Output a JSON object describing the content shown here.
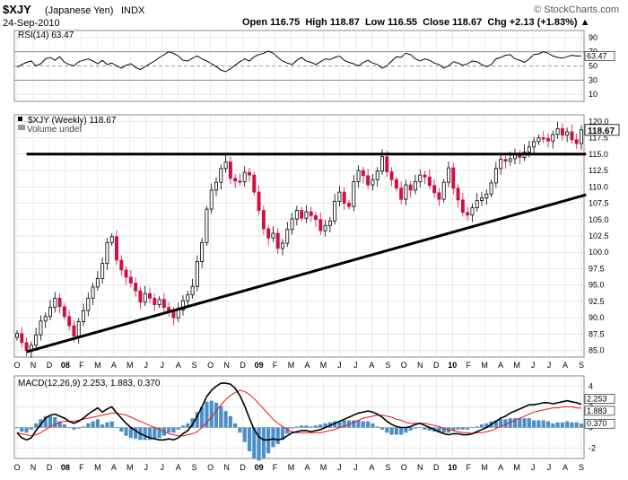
{
  "header": {
    "symbol": "$XJY",
    "name": "(Japanese Yen)",
    "exchange": "INDX",
    "date": "24-Sep-2010",
    "brand": "© StockCharts.com",
    "quote": "Open 116.75  High 118.87  Low 116.55  Close 118.67  Chg +2.13 (+1.83%) ▲"
  },
  "colors": {
    "up": "#000000",
    "down": "#cc1144",
    "macd_line": "#000000",
    "signal_line": "#ee1111",
    "histogram": "#4a90c8",
    "rsi_fill": "#5a9a3a",
    "grid": "#cfcfcf",
    "label_bg": "#9ec6ee"
  },
  "chart_data": [
    {
      "type": "line",
      "title": "RSI(14) 63.47",
      "label_value": "63.47",
      "ylim": [
        0,
        100
      ],
      "y_ticks": [
        "90",
        "70",
        "50",
        "30",
        "10"
      ],
      "reference_lines": [
        70,
        50,
        30
      ],
      "values": [
        48,
        52,
        55,
        57,
        50,
        53,
        60,
        62,
        58,
        63,
        55,
        52,
        50,
        56,
        58,
        60,
        57,
        53,
        58,
        52,
        54,
        50,
        47,
        51,
        53,
        48,
        45,
        49,
        53,
        57,
        62,
        66,
        70,
        68,
        64,
        58,
        57,
        61,
        64,
        60,
        57,
        53,
        49,
        44,
        42,
        46,
        51,
        56,
        60,
        57,
        63,
        66,
        68,
        71,
        68,
        62,
        57,
        54,
        52,
        58,
        62,
        57,
        55,
        52,
        56,
        60,
        59,
        62,
        64,
        58,
        55,
        53,
        50,
        55,
        58,
        54,
        52,
        47,
        50,
        57,
        63,
        62,
        68,
        66,
        60,
        57,
        60,
        58,
        54,
        52,
        47,
        50,
        56,
        54,
        51,
        53,
        57,
        56,
        52,
        49,
        52,
        60,
        62,
        65,
        66,
        60,
        58,
        55,
        60,
        66,
        67,
        70,
        68,
        64,
        62,
        61,
        63,
        65,
        64,
        64
      ]
    },
    {
      "type": "candlestick",
      "title": "$XJY (Weekly) 118.67",
      "volume_label": "Volume undef",
      "last_value": "118.67",
      "ylim": [
        84,
        121
      ],
      "y_ticks": [
        "120.0",
        "117.5",
        "115.0",
        "112.5",
        "110.0",
        "107.5",
        "105.0",
        "102.5",
        "100.0",
        "97.5",
        "95.0",
        "92.5",
        "90.0",
        "87.5",
        "85.0"
      ],
      "x_ticks": [
        "O",
        "N",
        "D",
        "08",
        "F",
        "M",
        "A",
        "M",
        "J",
        "J",
        "A",
        "S",
        "O",
        "N",
        "D",
        "09",
        "F",
        "M",
        "A",
        "M",
        "J",
        "J",
        "A",
        "S",
        "O",
        "N",
        "D",
        "10",
        "F",
        "M",
        "A",
        "M",
        "J",
        "J",
        "A",
        "S"
      ],
      "close": [
        87.6,
        86.2,
        85.0,
        85.8,
        87.4,
        89.5,
        90.2,
        91.6,
        93.0,
        91.7,
        90.2,
        88.8,
        87.2,
        89.4,
        91.1,
        93.0,
        94.7,
        96.0,
        98.3,
        101.5,
        102.4,
        98.8,
        97.3,
        96.2,
        95.3,
        94.1,
        92.4,
        93.7,
        93.0,
        92.0,
        92.8,
        91.6,
        91.1,
        90.0,
        91.2,
        92.6,
        93.5,
        94.8,
        98.6,
        101.5,
        106.6,
        109.5,
        110.7,
        112.8,
        113.8,
        111.3,
        110.9,
        110.8,
        112.2,
        111.8,
        109.2,
        106.4,
        103.6,
        102.2,
        102.9,
        100.6,
        101.4,
        103.5,
        105.1,
        106.4,
        105.2,
        106.2,
        105.6,
        105.0,
        103.3,
        104.1,
        104.8,
        107.8,
        109.2,
        107.5,
        107.0,
        110.8,
        112.5,
        111.7,
        110.3,
        111.1,
        112.4,
        114.6,
        112.3,
        111.1,
        109.8,
        108.1,
        110.3,
        109.5,
        110.8,
        111.8,
        111.5,
        110.2,
        109.1,
        108.1,
        110.7,
        112.9,
        109.8,
        108.0,
        106.1,
        105.7,
        106.8,
        107.9,
        108.3,
        108.9,
        110.6,
        112.8,
        114.2,
        113.9,
        114.3,
        115.0,
        114.5,
        115.3,
        116.1,
        116.9,
        117.5,
        117.4,
        117.0,
        118.0,
        118.9,
        117.9,
        118.4,
        117.2,
        116.6,
        118.7
      ],
      "trendlines": [
        {
          "name": "resistance",
          "points": [
            [
              2,
              115.0
            ],
            [
              120,
              115.0
            ]
          ]
        },
        {
          "name": "support",
          "points": [
            [
              2,
              84.8
            ],
            [
              120,
              108.8
            ]
          ]
        }
      ]
    },
    {
      "type": "line",
      "title": "MACD(12,26,9) 2.253, 1.883, 0.370",
      "macd_value": "2.253",
      "signal_value": "1.883",
      "hist_value": "0.370",
      "y_ticks": [
        "4",
        "2",
        "0",
        "-2"
      ],
      "macd": [
        -0.5,
        -1.0,
        -1.2,
        -1.0,
        -0.3,
        0.3,
        0.9,
        1.2,
        1.3,
        1.1,
        0.9,
        0.6,
        0.4,
        0.6,
        0.9,
        1.3,
        1.6,
        1.9,
        1.5,
        1.8,
        2.0,
        1.4,
        0.9,
        0.4,
        0.0,
        -0.3,
        -0.6,
        -0.8,
        -1.0,
        -1.1,
        -1.2,
        -1.2,
        -1.1,
        -1.2,
        -1.0,
        -0.6,
        -0.3,
        0.3,
        1.1,
        2.0,
        3.0,
        3.6,
        4.0,
        4.3,
        4.3,
        4.2,
        3.8,
        3.1,
        2.1,
        0.9,
        -0.2,
        -0.9,
        -1.2,
        -1.2,
        -1.1,
        -1.2,
        -1.1,
        -0.8,
        -0.5,
        -0.4,
        -0.3,
        -0.3,
        -0.4,
        -0.3,
        -0.2,
        0.0,
        0.2,
        0.4,
        0.6,
        0.8,
        1.0,
        1.2,
        1.4,
        1.5,
        1.6,
        1.5,
        1.3,
        1.0,
        0.6,
        0.3,
        0.1,
        0.0,
        0.0,
        0.1,
        0.3,
        0.4,
        0.2,
        0.0,
        -0.2,
        -0.4,
        -0.6,
        -0.7,
        -0.6,
        -0.6,
        -0.7,
        -0.7,
        -0.6,
        -0.4,
        -0.2,
        0.0,
        0.3,
        0.6,
        0.9,
        1.1,
        1.4,
        1.6,
        1.8,
        2.0,
        2.2,
        2.2,
        2.3,
        2.4,
        2.4,
        2.3,
        2.4,
        2.5,
        2.6,
        2.5,
        2.4,
        2.25
      ],
      "signal": [
        -0.5,
        -0.6,
        -0.7,
        -0.8,
        -0.7,
        -0.5,
        -0.2,
        0.1,
        0.3,
        0.5,
        0.6,
        0.6,
        0.6,
        0.7,
        0.8,
        0.9,
        1.0,
        1.1,
        1.2,
        1.3,
        1.4,
        1.4,
        1.3,
        1.2,
        1.0,
        0.8,
        0.6,
        0.4,
        0.2,
        0.0,
        -0.2,
        -0.4,
        -0.6,
        -0.7,
        -0.8,
        -0.8,
        -0.7,
        -0.6,
        -0.4,
        0.0,
        0.5,
        1.0,
        1.6,
        2.2,
        2.7,
        3.1,
        3.4,
        3.6,
        3.5,
        3.2,
        2.8,
        2.3,
        1.8,
        1.3,
        0.8,
        0.4,
        0.1,
        -0.2,
        -0.4,
        -0.5,
        -0.5,
        -0.5,
        -0.5,
        -0.5,
        -0.5,
        -0.4,
        -0.3,
        -0.2,
        0.0,
        0.1,
        0.3,
        0.5,
        0.7,
        0.9,
        1.0,
        1.1,
        1.2,
        1.2,
        1.1,
        1.0,
        0.8,
        0.7,
        0.5,
        0.4,
        0.4,
        0.4,
        0.4,
        0.3,
        0.2,
        0.1,
        -0.1,
        -0.2,
        -0.3,
        -0.4,
        -0.5,
        -0.5,
        -0.6,
        -0.5,
        -0.5,
        -0.4,
        -0.3,
        -0.1,
        0.1,
        0.3,
        0.5,
        0.7,
        0.9,
        1.1,
        1.3,
        1.5,
        1.6,
        1.7,
        1.8,
        1.9,
        1.9,
        2.0,
        2.0,
        2.0,
        1.9,
        1.88
      ]
    }
  ]
}
